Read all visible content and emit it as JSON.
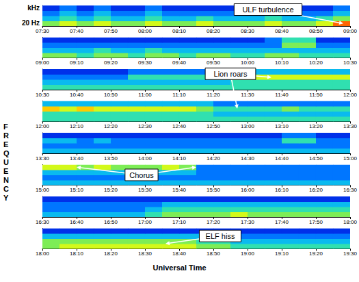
{
  "chart_data": {
    "type": "spectrogram",
    "xlabel": "Universal Time",
    "ylabel": "FREQUENCY",
    "y_end_labels": [
      "20 Hz",
      "kHz"
    ],
    "tick_labels": "x",
    "zlim": [
      0,
      10
    ],
    "panels": [
      {
        "xlim": [
          450,
          540
        ],
        "xticks": [
          {
            "value": 450,
            "label": "07:30"
          },
          {
            "value": 460,
            "label": "07:40"
          },
          {
            "value": 470,
            "label": "07:50"
          },
          {
            "value": 480,
            "label": "08:00"
          },
          {
            "value": 490,
            "label": "08:10"
          },
          {
            "value": 500,
            "label": "08:20"
          },
          {
            "value": 510,
            "label": "08:30"
          },
          {
            "value": 520,
            "label": "08:40"
          },
          {
            "value": 530,
            "label": "08:50"
          },
          {
            "value": 540,
            "label": "09:00"
          }
        ],
        "cells": [
          [
            6,
            7,
            6,
            7,
            6,
            6,
            7,
            6,
            6,
            7,
            6,
            6,
            6,
            7,
            6,
            6,
            7,
            9
          ],
          [
            4,
            5,
            4,
            5,
            4,
            4,
            5,
            4,
            4,
            5,
            4,
            4,
            4,
            5,
            4,
            4,
            5,
            6
          ],
          [
            3,
            4,
            3,
            4,
            3,
            3,
            4,
            3,
            3,
            3,
            3,
            3,
            3,
            4,
            3,
            3,
            3,
            4
          ],
          [
            2,
            3,
            2,
            3,
            2,
            2,
            3,
            2,
            2,
            2,
            2,
            2,
            2,
            3,
            2,
            2,
            2,
            3
          ]
        ]
      },
      {
        "xlim": [
          540,
          630
        ],
        "xticks": [
          {
            "value": 540,
            "label": "09:00"
          },
          {
            "value": 550,
            "label": "09:10"
          },
          {
            "value": 560,
            "label": "09:20"
          },
          {
            "value": 570,
            "label": "09:30"
          },
          {
            "value": 580,
            "label": "09:40"
          },
          {
            "value": 590,
            "label": "09:50"
          },
          {
            "value": 600,
            "label": "10:00"
          },
          {
            "value": 610,
            "label": "10:10"
          },
          {
            "value": 620,
            "label": "10:20"
          },
          {
            "value": 630,
            "label": "10:30"
          }
        ],
        "cells": [
          [
            6,
            6,
            5,
            6,
            6,
            5,
            6,
            6,
            5,
            6,
            6,
            5,
            5,
            6,
            6,
            5,
            5,
            5
          ],
          [
            4,
            4,
            4,
            5,
            4,
            4,
            5,
            4,
            4,
            4,
            4,
            4,
            4,
            4,
            4,
            4,
            4,
            4
          ],
          [
            3,
            3,
            3,
            3,
            3,
            3,
            3,
            3,
            3,
            3,
            3,
            3,
            3,
            3,
            6,
            6,
            3,
            3
          ],
          [
            2,
            2,
            2,
            2,
            2,
            2,
            2,
            2,
            2,
            2,
            2,
            2,
            2,
            3,
            5,
            5,
            2,
            2
          ]
        ]
      },
      {
        "xlim": [
          630,
          720
        ],
        "xticks": [
          {
            "value": 630,
            "label": "10:30"
          },
          {
            "value": 640,
            "label": "10:40"
          },
          {
            "value": 650,
            "label": "10:50"
          },
          {
            "value": 660,
            "label": "11:00"
          },
          {
            "value": 670,
            "label": "11:10"
          },
          {
            "value": 680,
            "label": "11:20"
          },
          {
            "value": 690,
            "label": "11:30"
          },
          {
            "value": 700,
            "label": "11:40"
          },
          {
            "value": 710,
            "label": "11:50"
          },
          {
            "value": 720,
            "label": "12:00"
          }
        ],
        "cells": [
          [
            5,
            5,
            5,
            5,
            5,
            5,
            5,
            5,
            5,
            5,
            5,
            5,
            5,
            5,
            5,
            5,
            5,
            5
          ],
          [
            4,
            4,
            4,
            4,
            4,
            4,
            4,
            4,
            4,
            4,
            4,
            5,
            5,
            5,
            5,
            5,
            5,
            5
          ],
          [
            3,
            3,
            3,
            3,
            3,
            5,
            5,
            5,
            5,
            5,
            5,
            7,
            7,
            7,
            7,
            7,
            7,
            7
          ],
          [
            2,
            2,
            2,
            2,
            2,
            3,
            3,
            3,
            3,
            3,
            3,
            4,
            4,
            4,
            4,
            4,
            4,
            4
          ]
        ]
      },
      {
        "xlim": [
          720,
          810
        ],
        "xticks": [
          {
            "value": 720,
            "label": "12:00"
          },
          {
            "value": 730,
            "label": "12:10"
          },
          {
            "value": 740,
            "label": "12:20"
          },
          {
            "value": 750,
            "label": "12:30"
          },
          {
            "value": 760,
            "label": "12:40"
          },
          {
            "value": 770,
            "label": "12:50"
          },
          {
            "value": 780,
            "label": "13:00"
          },
          {
            "value": 790,
            "label": "13:10"
          },
          {
            "value": 800,
            "label": "13:20"
          },
          {
            "value": 810,
            "label": "13:30"
          }
        ],
        "cells": [
          [
            5,
            5,
            5,
            5,
            5,
            5,
            5,
            5,
            5,
            5,
            5,
            5,
            5,
            5,
            5,
            5,
            5,
            5
          ],
          [
            5,
            5,
            5,
            5,
            5,
            5,
            5,
            5,
            5,
            5,
            4,
            4,
            4,
            4,
            4,
            4,
            4,
            4
          ],
          [
            8,
            7,
            8,
            7,
            7,
            7,
            7,
            7,
            7,
            6,
            5,
            5,
            5,
            5,
            6,
            5,
            5,
            5
          ],
          [
            4,
            4,
            4,
            4,
            4,
            4,
            4,
            4,
            4,
            4,
            3,
            3,
            3,
            3,
            3,
            3,
            3,
            3
          ]
        ]
      },
      {
        "xlim": [
          810,
          900
        ],
        "xticks": [
          {
            "value": 810,
            "label": "13:30"
          },
          {
            "value": 820,
            "label": "13:40"
          },
          {
            "value": 830,
            "label": "13:50"
          },
          {
            "value": 840,
            "label": "14:00"
          },
          {
            "value": 850,
            "label": "14:10"
          },
          {
            "value": 860,
            "label": "14:20"
          },
          {
            "value": 870,
            "label": "14:30"
          },
          {
            "value": 880,
            "label": "14:40"
          },
          {
            "value": 890,
            "label": "14:50"
          },
          {
            "value": 900,
            "label": "15:00"
          }
        ],
        "cells": [
          [
            4,
            4,
            4,
            4,
            4,
            4,
            4,
            4,
            4,
            4,
            4,
            4,
            4,
            4,
            4,
            4,
            4,
            4
          ],
          [
            3,
            3,
            3,
            3,
            3,
            3,
            3,
            3,
            3,
            3,
            3,
            3,
            3,
            3,
            3,
            3,
            3,
            3
          ],
          [
            4,
            4,
            3,
            4,
            3,
            3,
            3,
            3,
            3,
            3,
            3,
            3,
            3,
            3,
            5,
            5,
            3,
            3
          ],
          [
            2,
            2,
            2,
            2,
            2,
            2,
            2,
            2,
            2,
            2,
            2,
            2,
            2,
            2,
            3,
            3,
            2,
            2
          ]
        ]
      },
      {
        "xlim": [
          900,
          990
        ],
        "xticks": [
          {
            "value": 900,
            "label": "15:00"
          },
          {
            "value": 910,
            "label": "15:10"
          },
          {
            "value": 920,
            "label": "15:20"
          },
          {
            "value": 930,
            "label": "15:30"
          },
          {
            "value": 940,
            "label": "15:40"
          },
          {
            "value": 950,
            "label": "15:50"
          },
          {
            "value": 960,
            "label": "16:00"
          },
          {
            "value": 970,
            "label": "16:10"
          },
          {
            "value": 980,
            "label": "16:20"
          },
          {
            "value": 990,
            "label": "16:30"
          }
        ],
        "cells": [
          [
            4,
            4,
            4,
            4,
            4,
            4,
            4,
            4,
            4,
            4,
            4,
            4,
            4,
            4,
            4,
            4,
            4,
            4
          ],
          [
            3,
            3,
            3,
            3,
            3,
            3,
            3,
            3,
            3,
            3,
            3,
            3,
            3,
            3,
            3,
            3,
            3,
            3
          ],
          [
            4,
            4,
            4,
            4,
            4,
            4,
            4,
            4,
            4,
            3,
            3,
            3,
            3,
            3,
            3,
            3,
            3,
            3
          ],
          [
            7,
            7,
            6,
            7,
            6,
            6,
            6,
            7,
            6,
            3,
            3,
            3,
            3,
            3,
            3,
            3,
            3,
            3
          ]
        ]
      },
      {
        "xlim": [
          990,
          1080
        ],
        "xticks": [
          {
            "value": 990,
            "label": "16:30"
          },
          {
            "value": 1000,
            "label": "16:40"
          },
          {
            "value": 1010,
            "label": "16:50"
          },
          {
            "value": 1020,
            "label": "17:00"
          },
          {
            "value": 1030,
            "label": "17:10"
          },
          {
            "value": 1040,
            "label": "17:20"
          },
          {
            "value": 1050,
            "label": "17:30"
          },
          {
            "value": 1060,
            "label": "17:40"
          },
          {
            "value": 1070,
            "label": "17:50"
          },
          {
            "value": 1080,
            "label": "18:00"
          }
        ],
        "cells": [
          [
            4,
            4,
            4,
            4,
            4,
            4,
            5,
            6,
            6,
            6,
            6,
            7,
            6,
            6,
            6,
            6,
            6,
            6
          ],
          [
            3,
            3,
            3,
            3,
            3,
            3,
            4,
            5,
            5,
            5,
            5,
            5,
            5,
            5,
            5,
            5,
            5,
            5
          ],
          [
            3,
            3,
            3,
            3,
            3,
            3,
            3,
            4,
            4,
            4,
            4,
            4,
            4,
            4,
            4,
            4,
            4,
            4
          ],
          [
            2,
            2,
            2,
            2,
            2,
            2,
            2,
            2,
            2,
            2,
            2,
            2,
            2,
            2,
            2,
            2,
            2,
            2
          ]
        ]
      },
      {
        "xlim": [
          1080,
          1170
        ],
        "xticks": [
          {
            "value": 1080,
            "label": "18:00"
          },
          {
            "value": 1090,
            "label": "18:10"
          },
          {
            "value": 1100,
            "label": "18:20"
          },
          {
            "value": 1110,
            "label": "18:30"
          },
          {
            "value": 1120,
            "label": "18:40"
          },
          {
            "value": 1130,
            "label": "18:50"
          },
          {
            "value": 1140,
            "label": "19:00"
          },
          {
            "value": 1150,
            "label": "19:10"
          },
          {
            "value": 1160,
            "label": "19:20"
          },
          {
            "value": 1170,
            "label": "19:30"
          }
        ],
        "cells": [
          [
            6,
            7,
            7,
            7,
            7,
            7,
            7,
            7,
            7,
            6,
            6,
            5,
            5,
            5,
            5,
            5,
            5,
            5
          ],
          [
            6,
            6,
            6,
            6,
            6,
            6,
            6,
            6,
            6,
            5,
            5,
            4,
            4,
            4,
            4,
            4,
            4,
            4
          ],
          [
            4,
            4,
            4,
            4,
            4,
            4,
            4,
            4,
            4,
            4,
            4,
            3,
            3,
            3,
            3,
            3,
            3,
            3
          ],
          [
            2,
            2,
            2,
            2,
            2,
            2,
            2,
            2,
            2,
            2,
            2,
            2,
            2,
            2,
            2,
            2,
            2,
            2
          ]
        ]
      }
    ],
    "annotations": [
      {
        "text": "ULF turbulence",
        "panel": 0,
        "x": 516,
        "row": 3.2,
        "targets": [
          {
            "panel": 0,
            "x": 538,
            "row": 0.5
          }
        ]
      },
      {
        "text": "Lion roars",
        "panel": 2,
        "x": 685,
        "row": 3.1,
        "targets": [
          {
            "panel": 2,
            "x": 697,
            "row": 2.4
          },
          {
            "panel": 3,
            "x": 777,
            "row": 2.5
          }
        ]
      },
      {
        "text": "Chorus",
        "panel": 5,
        "x": 929,
        "row": 2,
        "targets": [
          {
            "panel": 5,
            "x": 910,
            "row": 3.5
          },
          {
            "panel": 5,
            "x": 945,
            "row": 3.5
          }
        ]
      },
      {
        "text": "ELF hiss",
        "panel": 7,
        "x": 1132,
        "row": 2.5,
        "targets": [
          {
            "panel": 7,
            "x": 1116,
            "row": 1
          }
        ]
      }
    ]
  }
}
